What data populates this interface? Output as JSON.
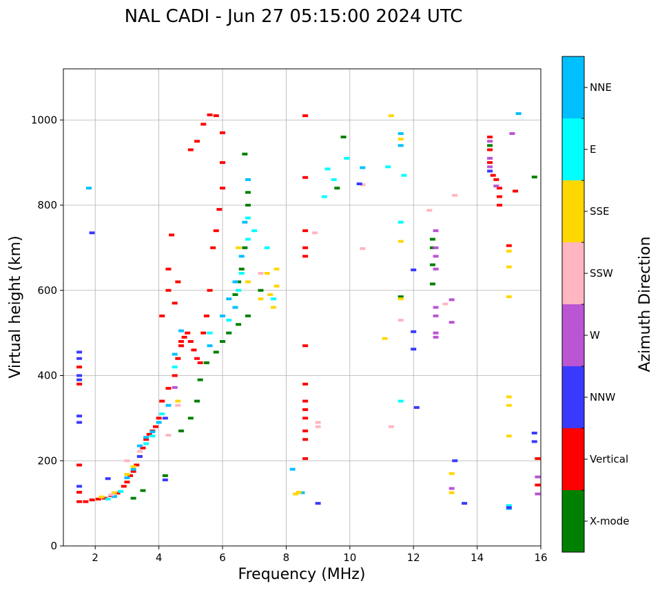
{
  "chart_data": {
    "type": "scatter",
    "title": "NAL CADI - Jun 27 05:15:00 2024 UTC",
    "xlabel": "Frequency (MHz)",
    "ylabel": "Virtual height (km)",
    "xlim": [
      1,
      16
    ],
    "ylim": [
      0,
      1120
    ],
    "xticks": [
      "2",
      "4",
      "6",
      "8",
      "10",
      "12",
      "14",
      "16"
    ],
    "yticks": [
      "0",
      "200",
      "400",
      "600",
      "800",
      "1000"
    ],
    "grid": true,
    "colorbar": {
      "label": "Azimuth Direction",
      "categories": [
        {
          "name": "NNE",
          "color": "#00BFFF"
        },
        {
          "name": "E",
          "color": "#00FFFF"
        },
        {
          "name": "SSE",
          "color": "#FFD700"
        },
        {
          "name": "SSW",
          "color": "#FFB6C1"
        },
        {
          "name": "W",
          "color": "#BA55D3"
        },
        {
          "name": "NNW",
          "color": "#3A3AFF"
        },
        {
          "name": "Vertical",
          "color": "#FF0000"
        },
        {
          "name": "X-mode",
          "color": "#008000"
        }
      ]
    },
    "series": [
      {
        "name": "Vertical",
        "points": [
          [
            1.5,
            104
          ],
          [
            1.5,
            126
          ],
          [
            1.5,
            190
          ],
          [
            1.5,
            380
          ],
          [
            1.5,
            420
          ],
          [
            1.7,
            104
          ],
          [
            1.9,
            108
          ],
          [
            2.1,
            110
          ],
          [
            2.3,
            112
          ],
          [
            2.5,
            118
          ],
          [
            2.7,
            124
          ],
          [
            2.9,
            140
          ],
          [
            3.0,
            150
          ],
          [
            3.1,
            165
          ],
          [
            3.2,
            175
          ],
          [
            3.3,
            190
          ],
          [
            3.4,
            210
          ],
          [
            3.5,
            230
          ],
          [
            3.6,
            250
          ],
          [
            3.7,
            262
          ],
          [
            3.8,
            270
          ],
          [
            3.9,
            280
          ],
          [
            4.0,
            300
          ],
          [
            4.1,
            340
          ],
          [
            4.3,
            370
          ],
          [
            4.5,
            400
          ],
          [
            4.6,
            440
          ],
          [
            4.7,
            470
          ],
          [
            4.8,
            490
          ],
          [
            4.9,
            500
          ],
          [
            5.0,
            480
          ],
          [
            5.1,
            460
          ],
          [
            5.2,
            440
          ],
          [
            5.3,
            430
          ],
          [
            5.4,
            500
          ],
          [
            5.5,
            540
          ],
          [
            5.6,
            600
          ],
          [
            5.7,
            700
          ],
          [
            5.8,
            740
          ],
          [
            5.9,
            790
          ],
          [
            6.0,
            840
          ],
          [
            6.0,
            900
          ],
          [
            6.0,
            970
          ],
          [
            5.8,
            1010
          ],
          [
            5.6,
            1012
          ],
          [
            5.4,
            990
          ],
          [
            5.2,
            950
          ],
          [
            5.0,
            930
          ],
          [
            4.4,
            730
          ],
          [
            4.3,
            650
          ],
          [
            4.3,
            600
          ],
          [
            4.1,
            540
          ],
          [
            4.5,
            570
          ],
          [
            4.6,
            620
          ],
          [
            4.7,
            480
          ],
          [
            8.6,
            1010
          ],
          [
            8.6,
            865
          ],
          [
            8.6,
            740
          ],
          [
            8.6,
            700
          ],
          [
            8.6,
            680
          ],
          [
            8.6,
            470
          ],
          [
            8.6,
            380
          ],
          [
            8.6,
            340
          ],
          [
            8.6,
            320
          ],
          [
            8.6,
            300
          ],
          [
            8.6,
            270
          ],
          [
            8.6,
            250
          ],
          [
            8.6,
            205
          ],
          [
            14.4,
            960
          ],
          [
            14.4,
            930
          ],
          [
            14.4,
            900
          ],
          [
            14.5,
            870
          ],
          [
            14.6,
            860
          ],
          [
            14.7,
            840
          ],
          [
            14.7,
            820
          ],
          [
            14.7,
            800
          ],
          [
            15.0,
            705
          ],
          [
            15.2,
            833
          ],
          [
            15.9,
            205
          ],
          [
            15.9,
            143
          ]
        ]
      },
      {
        "name": "X-mode",
        "points": [
          [
            3.2,
            112
          ],
          [
            3.5,
            130
          ],
          [
            4.2,
            165
          ],
          [
            4.7,
            270
          ],
          [
            5.0,
            300
          ],
          [
            5.2,
            340
          ],
          [
            5.3,
            390
          ],
          [
            5.5,
            430
          ],
          [
            5.8,
            455
          ],
          [
            6.0,
            480
          ],
          [
            6.2,
            500
          ],
          [
            6.5,
            520
          ],
          [
            6.8,
            540
          ],
          [
            6.4,
            590
          ],
          [
            6.5,
            620
          ],
          [
            6.6,
            650
          ],
          [
            6.7,
            700
          ],
          [
            6.8,
            800
          ],
          [
            6.8,
            830
          ],
          [
            6.7,
            920
          ],
          [
            7.2,
            600
          ],
          [
            9.6,
            840
          ],
          [
            9.8,
            960
          ],
          [
            11.6,
            585
          ],
          [
            12.6,
            615
          ],
          [
            12.6,
            660
          ],
          [
            12.6,
            700
          ],
          [
            12.6,
            720
          ],
          [
            14.4,
            940
          ],
          [
            15.8,
            866
          ]
        ]
      },
      {
        "name": "NNE",
        "points": [
          [
            2.6,
            116
          ],
          [
            3.0,
            160
          ],
          [
            3.2,
            180
          ],
          [
            3.4,
            235
          ],
          [
            3.6,
            255
          ],
          [
            3.8,
            268
          ],
          [
            4.0,
            290
          ],
          [
            4.3,
            330
          ],
          [
            4.5,
            450
          ],
          [
            4.7,
            505
          ],
          [
            5.6,
            470
          ],
          [
            6.0,
            540
          ],
          [
            6.2,
            580
          ],
          [
            6.4,
            620
          ],
          [
            6.4,
            560
          ],
          [
            6.6,
            680
          ],
          [
            6.7,
            760
          ],
          [
            6.8,
            860
          ],
          [
            1.8,
            840
          ],
          [
            8.2,
            180
          ],
          [
            8.5,
            125
          ],
          [
            10.4,
            888
          ],
          [
            11.6,
            940
          ],
          [
            11.6,
            968
          ],
          [
            15.0,
            88
          ],
          [
            15.3,
            1015
          ]
        ]
      },
      {
        "name": "E",
        "points": [
          [
            2.4,
            110
          ],
          [
            2.8,
            128
          ],
          [
            3.6,
            240
          ],
          [
            3.8,
            258
          ],
          [
            4.1,
            310
          ],
          [
            4.5,
            420
          ],
          [
            5.6,
            500
          ],
          [
            6.2,
            530
          ],
          [
            6.5,
            600
          ],
          [
            6.6,
            640
          ],
          [
            6.8,
            720
          ],
          [
            6.8,
            770
          ],
          [
            7.0,
            740
          ],
          [
            7.4,
            700
          ],
          [
            7.6,
            580
          ],
          [
            9.2,
            820
          ],
          [
            9.3,
            885
          ],
          [
            9.5,
            860
          ],
          [
            9.9,
            910
          ],
          [
            11.2,
            890
          ],
          [
            11.6,
            340
          ],
          [
            11.6,
            760
          ],
          [
            11.7,
            870
          ],
          [
            15.0,
            95
          ]
        ]
      },
      {
        "name": "SSE",
        "points": [
          [
            2.2,
            115
          ],
          [
            2.6,
            125
          ],
          [
            3.0,
            168
          ],
          [
            3.2,
            186
          ],
          [
            4.6,
            340
          ],
          [
            6.5,
            700
          ],
          [
            6.8,
            620
          ],
          [
            7.2,
            580
          ],
          [
            7.4,
            640
          ],
          [
            7.5,
            590
          ],
          [
            7.6,
            560
          ],
          [
            7.7,
            610
          ],
          [
            7.7,
            650
          ],
          [
            8.3,
            122
          ],
          [
            8.4,
            126
          ],
          [
            11.1,
            487
          ],
          [
            11.3,
            1010
          ],
          [
            11.6,
            955
          ],
          [
            11.6,
            715
          ],
          [
            11.6,
            580
          ],
          [
            13.2,
            170
          ],
          [
            13.2,
            125
          ],
          [
            15.0,
            350
          ],
          [
            15.0,
            330
          ],
          [
            15.0,
            258
          ],
          [
            15.0,
            655
          ],
          [
            15.0,
            585
          ],
          [
            15.0,
            692
          ]
        ]
      },
      {
        "name": "SSW",
        "points": [
          [
            2.5,
            120
          ],
          [
            3.0,
            200
          ],
          [
            3.4,
            222
          ],
          [
            4.3,
            260
          ],
          [
            4.6,
            330
          ],
          [
            7.2,
            640
          ],
          [
            8.9,
            735
          ],
          [
            9.0,
            290
          ],
          [
            9.0,
            280
          ],
          [
            10.4,
            698
          ],
          [
            10.4,
            848
          ],
          [
            11.3,
            280
          ],
          [
            12.5,
            788
          ],
          [
            13.0,
            568
          ],
          [
            13.3,
            823
          ],
          [
            11.6,
            530
          ]
        ]
      },
      {
        "name": "W",
        "points": [
          [
            4.5,
            372
          ],
          [
            12.7,
            740
          ],
          [
            12.7,
            700
          ],
          [
            12.7,
            680
          ],
          [
            12.7,
            650
          ],
          [
            12.7,
            560
          ],
          [
            12.7,
            540
          ],
          [
            12.7,
            500
          ],
          [
            12.7,
            490
          ],
          [
            13.2,
            578
          ],
          [
            13.2,
            525
          ],
          [
            13.2,
            135
          ],
          [
            14.4,
            950
          ],
          [
            14.4,
            910
          ],
          [
            14.4,
            890
          ],
          [
            14.6,
            845
          ],
          [
            15.1,
            968
          ],
          [
            15.9,
            162
          ],
          [
            15.9,
            122
          ]
        ]
      },
      {
        "name": "NNW",
        "points": [
          [
            1.5,
            455
          ],
          [
            1.5,
            440
          ],
          [
            1.5,
            400
          ],
          [
            1.5,
            390
          ],
          [
            1.5,
            305
          ],
          [
            1.5,
            290
          ],
          [
            1.5,
            140
          ],
          [
            1.9,
            735
          ],
          [
            2.4,
            158
          ],
          [
            3.4,
            210
          ],
          [
            4.2,
            300
          ],
          [
            4.2,
            155
          ],
          [
            9.0,
            100
          ],
          [
            10.3,
            850
          ],
          [
            12.0,
            648
          ],
          [
            12.0,
            503
          ],
          [
            12.0,
            462
          ],
          [
            12.1,
            325
          ],
          [
            13.3,
            200
          ],
          [
            13.6,
            100
          ],
          [
            14.4,
            880
          ],
          [
            15.0,
            90
          ],
          [
            15.8,
            265
          ],
          [
            15.8,
            245
          ]
        ]
      }
    ]
  }
}
